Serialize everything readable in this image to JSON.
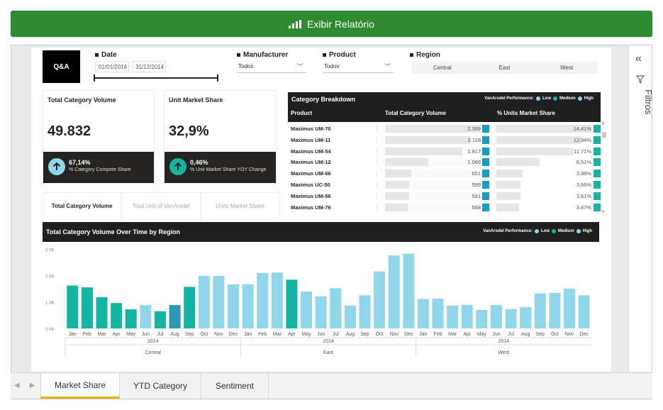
{
  "topbar": {
    "label": "Exibir Relatório"
  },
  "qa_label": "Q&A",
  "slicers": {
    "date": {
      "label": "Date",
      "start": "01/01/2014",
      "end": "31/12/2014"
    },
    "manufacturer": {
      "label": "Manufacturer",
      "value": "Todos"
    },
    "product": {
      "label": "Product",
      "value": "Todos"
    },
    "region": {
      "label": "Region",
      "options": [
        "Central",
        "East",
        "West"
      ]
    }
  },
  "cards": [
    {
      "title": "Total Category Volume",
      "value": "49.832",
      "pct": "67,14%",
      "sub": "% Category Compete Share"
    },
    {
      "title": "Unit Market Share",
      "value": "32,9%",
      "pct": "0,46%",
      "sub": "% Unit Market Share YOY Change"
    }
  ],
  "visual_tabs": [
    "Total Category Volume",
    "Total Unit of VanArsdel",
    "Units Market Share"
  ],
  "table": {
    "title": "Category Breakdown",
    "performance_label": "VanArsdel Performance:",
    "legend": [
      {
        "name": "Low",
        "color": "#8fd6ea"
      },
      {
        "name": "Medium",
        "color": "#13b5a2"
      },
      {
        "name": "High",
        "color": "#8fd6ea"
      }
    ],
    "columns": [
      "Product",
      "Total Category Volume",
      "% Units Market Share"
    ],
    "rows": [
      {
        "product": "Maximus UM-70",
        "volume": "2.359",
        "share": "14,41%"
      },
      {
        "product": "Maximus UM-11",
        "volume": "2.118",
        "share": "12,94%"
      },
      {
        "product": "Maximus UM-54",
        "volume": "1.917",
        "share": "11,71%"
      },
      {
        "product": "Maximus UM-12",
        "volume": "1.066",
        "share": "6,51%"
      },
      {
        "product": "Maximus UM-66",
        "volume": "651",
        "share": "3,98%"
      },
      {
        "product": "Maximus UC-50",
        "volume": "599",
        "share": "3,66%"
      },
      {
        "product": "Maximus UM-56",
        "volume": "591",
        "share": "3,61%"
      },
      {
        "product": "Maximus UM-76",
        "volume": "568",
        "share": "3,47%"
      }
    ],
    "volume_values": [
      2359,
      2118,
      1917,
      1066,
      651,
      599,
      591,
      568
    ],
    "share_values": [
      14.41,
      12.94,
      11.71,
      6.51,
      3.98,
      3.66,
      3.61,
      3.47
    ]
  },
  "chart_data": {
    "type": "bar",
    "title": "Total Category Volume Over Time by Region",
    "performance_label": "VanArsdel Performance:",
    "legend": [
      "Low",
      "Medium",
      "High"
    ],
    "yticks": [
      "3 Mil",
      "2 Mil",
      "1 Mil",
      "0 Mil"
    ],
    "ylim": [
      0,
      3
    ],
    "months": [
      "Jan",
      "Feb",
      "Mar",
      "Apr",
      "May",
      "Jun",
      "Jul",
      "Aug",
      "Sep",
      "Oct",
      "Nov",
      "Dec"
    ],
    "year": "2014",
    "regions": [
      {
        "name": "Central",
        "values": [
          1.62,
          1.55,
          1.18,
          0.96,
          0.72,
          0.88,
          0.65,
          0.88,
          1.57,
          1.98,
          1.98,
          1.66
        ],
        "colors": [
          "#13b5a2",
          "#13b5a2",
          "#13b5a2",
          "#13b5a2",
          "#13b5a2",
          "#8fd6ea",
          "#13b5a2",
          "#2c97b7",
          "#13b5a2",
          "#8fd6ea",
          "#8fd6ea",
          "#8fd6ea"
        ]
      },
      {
        "name": "East",
        "values": [
          1.67,
          2.09,
          2.11,
          1.84,
          1.39,
          1.21,
          1.52,
          0.86,
          1.25,
          2.15,
          2.76,
          2.82
        ],
        "colors": [
          "#8fd6ea",
          "#8fd6ea",
          "#8fd6ea",
          "#13b5a2",
          "#8fd6ea",
          "#8fd6ea",
          "#8fd6ea",
          "#8fd6ea",
          "#8fd6ea",
          "#8fd6ea",
          "#8fd6ea",
          "#8fd6ea"
        ]
      },
      {
        "name": "West",
        "values": [
          1.11,
          1.13,
          0.86,
          0.89,
          0.7,
          0.88,
          0.73,
          0.81,
          1.32,
          1.34,
          1.5,
          1.25
        ],
        "colors": [
          "#8fd6ea",
          "#8fd6ea",
          "#8fd6ea",
          "#8fd6ea",
          "#8fd6ea",
          "#8fd6ea",
          "#8fd6ea",
          "#8fd6ea",
          "#8fd6ea",
          "#8fd6ea",
          "#8fd6ea",
          "#8fd6ea"
        ]
      }
    ]
  },
  "side_panel": {
    "label": "Filtros"
  },
  "page_tabs": [
    "Market Share",
    "YTD Category",
    "Sentiment"
  ],
  "colors": {
    "accent_green": "#2e8b30",
    "low": "#8fd6ea",
    "medium": "#13b5a2",
    "high": "#8fd6ea",
    "active_tab": "#e8b100"
  }
}
